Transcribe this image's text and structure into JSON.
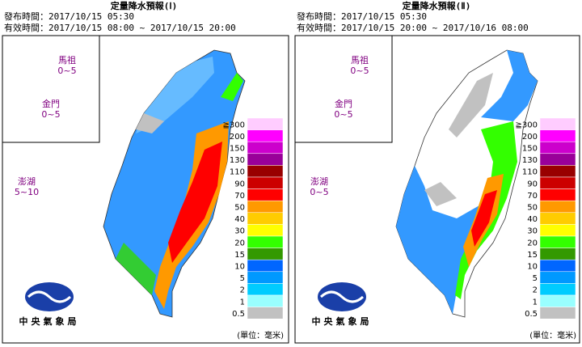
{
  "panels": [
    {
      "title": "定量降水預報(Ⅰ)",
      "issued": "發布時間：2017/10/15 05:30",
      "valid": "有效時間：2017/10/15 08:00 ~ 2017/10/15 20:00",
      "islands": [
        {
          "name": "馬祖",
          "range": "0~5"
        },
        {
          "name": "金門",
          "range": "0~5"
        },
        {
          "name": "澎湖",
          "range": "5~10"
        }
      ]
    },
    {
      "title": "定量降水預報(Ⅱ)",
      "issued": "發布時間：2017/10/15 05:30",
      "valid": "有效時間：2017/10/15 20:00 ~ 2017/10/16 08:00",
      "islands": [
        {
          "name": "馬祖",
          "range": "0~5"
        },
        {
          "name": "金門",
          "range": "0~5"
        },
        {
          "name": "澎湖",
          "range": "0~5"
        }
      ]
    }
  ],
  "legend": {
    "labels": [
      "≧300",
      "200",
      "150",
      "130",
      "110",
      "90",
      "70",
      "50",
      "40",
      "30",
      "20",
      "15",
      "10",
      "5",
      "2",
      "1",
      "0.5"
    ],
    "colors": [
      "#ffccff",
      "#ff00ff",
      "#cc00cc",
      "#990099",
      "#990000",
      "#cc0000",
      "#ff0000",
      "#ff9900",
      "#ffcc00",
      "#ffff00",
      "#33ff00",
      "#339900",
      "#0066ff",
      "#0099ff",
      "#00ccff",
      "#99ffff",
      "#c1c1c1"
    ]
  },
  "unit": "(單位：毫米)",
  "logo": "中央氣象局"
}
